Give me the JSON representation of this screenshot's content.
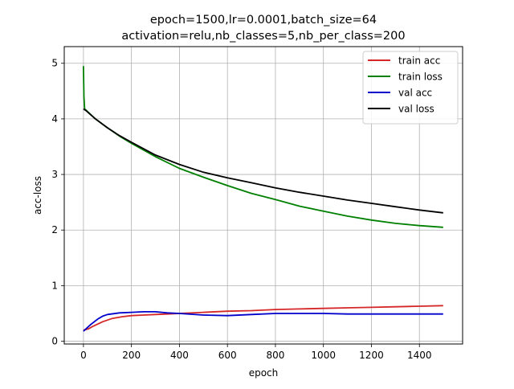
{
  "chart_data": {
    "type": "line",
    "title_line1": "epoch=1500,lr=0.0001,batch_size=64",
    "title_line2": "activation=relu,nb_classes=5,nb_per_class=200",
    "xlabel": "epoch",
    "ylabel": "acc-loss",
    "xlim": [
      -80,
      1580
    ],
    "ylim": [
      -0.05,
      5.3
    ],
    "x_ticks": [
      0,
      200,
      400,
      600,
      800,
      1000,
      1200,
      1400
    ],
    "y_ticks": [
      0,
      1,
      2,
      3,
      4,
      5
    ],
    "grid": true,
    "legend_position": "top-right",
    "series": [
      {
        "name": "train acc",
        "color": "#d62728",
        "x": [
          0,
          20,
          40,
          80,
          120,
          160,
          200,
          250,
          300,
          350,
          400,
          500,
          600,
          700,
          800,
          900,
          1000,
          1100,
          1200,
          1300,
          1400,
          1499
        ],
        "y": [
          0.2,
          0.22,
          0.27,
          0.35,
          0.41,
          0.44,
          0.46,
          0.47,
          0.48,
          0.49,
          0.5,
          0.52,
          0.54,
          0.55,
          0.57,
          0.58,
          0.59,
          0.6,
          0.61,
          0.62,
          0.63,
          0.64
        ]
      },
      {
        "name": "train loss",
        "color": "#008000",
        "x": [
          0,
          2,
          5,
          10,
          50,
          100,
          150,
          200,
          300,
          400,
          500,
          600,
          700,
          800,
          900,
          1000,
          1100,
          1200,
          1300,
          1400,
          1499
        ],
        "y": [
          4.95,
          4.4,
          4.18,
          4.16,
          4.0,
          3.84,
          3.69,
          3.56,
          3.32,
          3.11,
          2.95,
          2.8,
          2.66,
          2.55,
          2.43,
          2.34,
          2.25,
          2.18,
          2.12,
          2.08,
          2.05
        ]
      },
      {
        "name": "val acc",
        "color": "#0000cc",
        "x": [
          0,
          10,
          30,
          60,
          80,
          100,
          150,
          200,
          250,
          300,
          350,
          400,
          500,
          600,
          700,
          800,
          900,
          1000,
          1100,
          1200,
          1300,
          1400,
          1499
        ],
        "y": [
          0.18,
          0.22,
          0.3,
          0.4,
          0.45,
          0.48,
          0.51,
          0.52,
          0.53,
          0.53,
          0.51,
          0.5,
          0.47,
          0.46,
          0.48,
          0.5,
          0.5,
          0.5,
          0.49,
          0.49,
          0.49,
          0.49,
          0.49
        ]
      },
      {
        "name": "val loss",
        "color": "#000000",
        "x": [
          0,
          10,
          50,
          100,
          150,
          200,
          300,
          400,
          500,
          600,
          700,
          800,
          900,
          1000,
          1100,
          1200,
          1300,
          1400,
          1499
        ],
        "y": [
          4.18,
          4.15,
          4.0,
          3.84,
          3.7,
          3.58,
          3.35,
          3.18,
          3.04,
          2.94,
          2.85,
          2.76,
          2.68,
          2.61,
          2.54,
          2.48,
          2.42,
          2.36,
          2.31
        ]
      }
    ]
  }
}
